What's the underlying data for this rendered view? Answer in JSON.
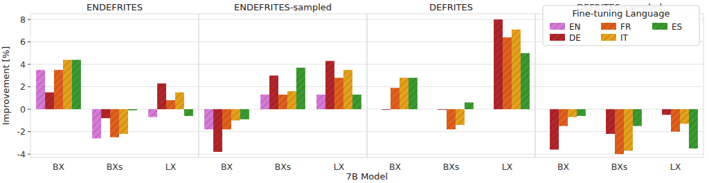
{
  "chart_data": [
    {
      "type": "bar",
      "title": "ENDEFRITES",
      "y_label": "Improvement [%]",
      "x_label": "7B Model",
      "categories": [
        "BX",
        "BXs",
        "LX"
      ],
      "series": [
        {
          "name": "EN",
          "color": "#d67ad6",
          "values": [
            3.5,
            -2.6,
            -0.7
          ]
        },
        {
          "name": "DE",
          "color": "#b2262b",
          "values": [
            1.5,
            -0.8,
            2.3
          ]
        },
        {
          "name": "FR",
          "color": "#e0601f",
          "values": [
            3.5,
            -2.5,
            0.8
          ]
        },
        {
          "name": "IT",
          "color": "#e5a11d",
          "values": [
            4.4,
            -2.2,
            1.5
          ]
        },
        {
          "name": "ES",
          "color": "#3c9a30",
          "values": [
            4.4,
            -0.1,
            -0.6
          ]
        }
      ],
      "ylim": [
        -4.3,
        8.5
      ],
      "yticks": [
        -4,
        -2,
        0,
        2,
        4,
        6,
        8
      ],
      "grid": true
    },
    {
      "type": "bar",
      "title": "ENDEFRITES-sampled",
      "categories": [
        "BX",
        "BXs",
        "LX"
      ],
      "series": [
        {
          "name": "EN",
          "color": "#d67ad6",
          "values": [
            -1.8,
            1.3,
            1.3
          ]
        },
        {
          "name": "DE",
          "color": "#b2262b",
          "values": [
            -3.8,
            3.0,
            4.3
          ]
        },
        {
          "name": "FR",
          "color": "#e0601f",
          "values": [
            -1.8,
            1.3,
            2.8
          ]
        },
        {
          "name": "IT",
          "color": "#e5a11d",
          "values": [
            -1.0,
            1.6,
            3.5
          ]
        },
        {
          "name": "ES",
          "color": "#3c9a30",
          "values": [
            -0.9,
            3.7,
            1.3
          ]
        }
      ],
      "ylim": [
        -4.3,
        8.5
      ],
      "yticks": [
        -4,
        -2,
        0,
        2,
        4,
        6,
        8
      ],
      "grid": true
    },
    {
      "type": "bar",
      "title": "DEFRITES",
      "categories": [
        "BX",
        "BXs",
        "LX"
      ],
      "series": [
        {
          "name": "EN",
          "color": "#d67ad6",
          "values": [
            null,
            null,
            null
          ]
        },
        {
          "name": "DE",
          "color": "#b2262b",
          "values": [
            -0.05,
            -0.05,
            8.0
          ]
        },
        {
          "name": "FR",
          "color": "#e0601f",
          "values": [
            1.9,
            -1.8,
            6.4
          ]
        },
        {
          "name": "IT",
          "color": "#e5a11d",
          "values": [
            2.8,
            -1.4,
            7.1
          ]
        },
        {
          "name": "ES",
          "color": "#3c9a30",
          "values": [
            2.8,
            0.6,
            5.0
          ]
        }
      ],
      "ylim": [
        -4.3,
        8.5
      ],
      "yticks": [
        -4,
        -2,
        0,
        2,
        4,
        6,
        8
      ],
      "grid": true
    },
    {
      "type": "bar",
      "title": "DEFRITES-sampled",
      "legend": "upper right",
      "legend_title": "Fine-tuning Language",
      "categories": [
        "BX",
        "BXs",
        "LX"
      ],
      "series": [
        {
          "name": "EN",
          "color": "#d67ad6",
          "values": [
            null,
            null,
            null
          ]
        },
        {
          "name": "DE",
          "color": "#b2262b",
          "values": [
            -3.6,
            -2.2,
            -0.5
          ]
        },
        {
          "name": "FR",
          "color": "#e0601f",
          "values": [
            -1.5,
            -4.0,
            -2.0
          ]
        },
        {
          "name": "IT",
          "color": "#e5a11d",
          "values": [
            -0.7,
            -3.7,
            -1.3
          ]
        },
        {
          "name": "ES",
          "color": "#3c9a30",
          "values": [
            -0.6,
            -1.5,
            -3.5
          ]
        }
      ],
      "ylim": [
        -4.3,
        8.5
      ],
      "yticks": [
        -4,
        -2,
        0,
        2,
        4,
        6,
        8
      ],
      "grid": true
    }
  ]
}
